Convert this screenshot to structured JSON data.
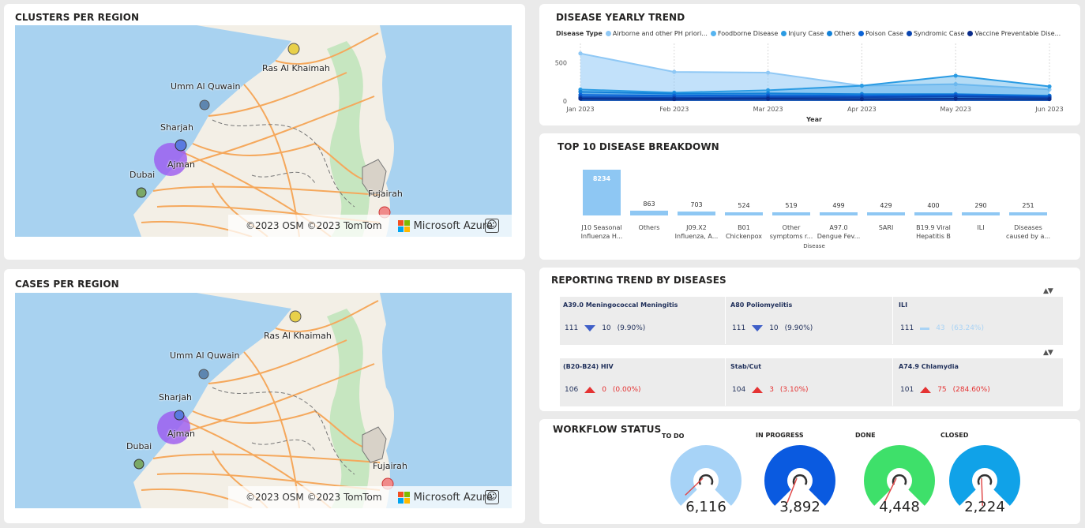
{
  "clusters_map": {
    "title": "CLUSTERS PER REGION",
    "cities": [
      "Ras Al Khaimah",
      "Umm Al Quwain",
      "Sharjah",
      "Ajman",
      "Dubai",
      "Fujairah"
    ],
    "copyright": "©2023 OSM  ©2023 TomTom",
    "provider": "Microsoft Azure"
  },
  "cases_map": {
    "title": "CASES PER REGION",
    "cities": [
      "Ras Al Khaimah",
      "Umm Al Quwain",
      "Sharjah",
      "Ajman",
      "Dubai",
      "Fujairah"
    ],
    "copyright": "©2023 OSM  ©2023 TomTom",
    "provider": "Microsoft Azure"
  },
  "yearly_trend": {
    "title": "DISEASE YEARLY TREND",
    "legend_title": "Disease Type",
    "legend": [
      {
        "name": "Airborne and other PH priori...",
        "color": "#8fc8f5"
      },
      {
        "name": "Foodborne Disease",
        "color": "#56b4f0"
      },
      {
        "name": "Injury Case",
        "color": "#2a9be3"
      },
      {
        "name": "Others",
        "color": "#1281d8"
      },
      {
        "name": "Poison Case",
        "color": "#0b63d6"
      },
      {
        "name": "Syndromic Case",
        "color": "#0a45b0"
      },
      {
        "name": "Vaccine Preventable Dise...",
        "color": "#0a2c8a"
      }
    ],
    "xlabel": "Year",
    "yticks": [
      "500",
      "0"
    ]
  },
  "chart_data": [
    {
      "type": "area",
      "title": "DISEASE YEARLY TREND",
      "xlabel": "Year",
      "ylabel": "",
      "x": [
        "Jan 2023",
        "Feb 2023",
        "Mar 2023",
        "Apr 2023",
        "May 2023",
        "Jun 2023"
      ],
      "ylim": [
        0,
        700
      ],
      "series": [
        {
          "name": "Airborne and other PH priori...",
          "values": [
            620,
            380,
            370,
            200,
            220,
            150
          ],
          "color": "#8fc8f5"
        },
        {
          "name": "Foodborne Disease",
          "values": [
            150,
            110,
            140,
            200,
            330,
            190
          ],
          "color": "#2a9be3"
        },
        {
          "name": "Others",
          "values": [
            120,
            95,
            100,
            90,
            90,
            70
          ],
          "color": "#1281d8"
        },
        {
          "name": "Poison Case",
          "values": [
            80,
            70,
            75,
            70,
            80,
            60
          ],
          "color": "#0b63d6"
        },
        {
          "name": "Syndromic Case",
          "values": [
            50,
            45,
            50,
            50,
            60,
            45
          ],
          "color": "#0a45b0"
        },
        {
          "name": "Vaccine Preventable Dise...",
          "values": [
            30,
            25,
            30,
            25,
            30,
            25
          ],
          "color": "#0a2c8a"
        }
      ]
    },
    {
      "type": "bar",
      "title": "TOP 10 DISEASE BREAKDOWN",
      "xlabel": "Disease",
      "ylabel": "",
      "categories": [
        [
          "J10 Seasonal",
          "Influenza H..."
        ],
        [
          "Others"
        ],
        [
          "J09.X2",
          "Influenza, A..."
        ],
        [
          "B01",
          "Chickenpox"
        ],
        [
          "Other",
          "symptoms r..."
        ],
        [
          "A97.0",
          "Dengue Fev..."
        ],
        [
          "SARI"
        ],
        [
          "B19.9 Viral",
          "Hepatitis B"
        ],
        [
          "ILI"
        ],
        [
          "Diseases",
          "caused by a..."
        ]
      ],
      "values": [
        8234,
        863,
        703,
        524,
        519,
        499,
        429,
        400,
        290,
        251
      ],
      "ylim": [
        0,
        8234
      ]
    }
  ],
  "top10": {
    "title": "TOP 10 DISEASE BREAKDOWN",
    "xlabel": "Disease"
  },
  "reporting": {
    "title": "REPORTING TREND BY DISEASES",
    "sort_glyph": "▲▼",
    "cards": [
      {
        "name": "A39.0 Meningococcal Meningitis",
        "base": "111",
        "delta": "10",
        "pct": "(9.90%)",
        "dir": "down"
      },
      {
        "name": "A80 Poliomyelitis",
        "base": "111",
        "delta": "10",
        "pct": "(9.90%)",
        "dir": "down"
      },
      {
        "name": "ILI",
        "base": "111",
        "delta": "43",
        "pct": "(63.24%)",
        "dir": "flat"
      },
      {
        "name": "(B20-B24) HIV",
        "base": "106",
        "delta": "0",
        "pct": "(0.00%)",
        "dir": "up"
      },
      {
        "name": "Stab/Cut",
        "base": "104",
        "delta": "3",
        "pct": "(3.10%)",
        "dir": "up"
      },
      {
        "name": "A74.9 Chlamydia",
        "base": "101",
        "delta": "75",
        "pct": "(284.60%)",
        "dir": "up"
      }
    ]
  },
  "workflow": {
    "title": "WORKFLOW STATUS",
    "gauges": [
      {
        "label": "TO DO",
        "value": "6,116",
        "color": "#a7d3f7",
        "needle_deg": -35
      },
      {
        "label": "IN PROGRESS",
        "value": "3,892",
        "color": "#0a5ae0",
        "needle_deg": -60
      },
      {
        "label": "DONE",
        "value": "4,448",
        "color": "#3ee06a",
        "needle_deg": -55
      },
      {
        "label": "CLOSED",
        "value": "2,224",
        "color": "#10a2e8",
        "needle_deg": -85
      }
    ]
  }
}
